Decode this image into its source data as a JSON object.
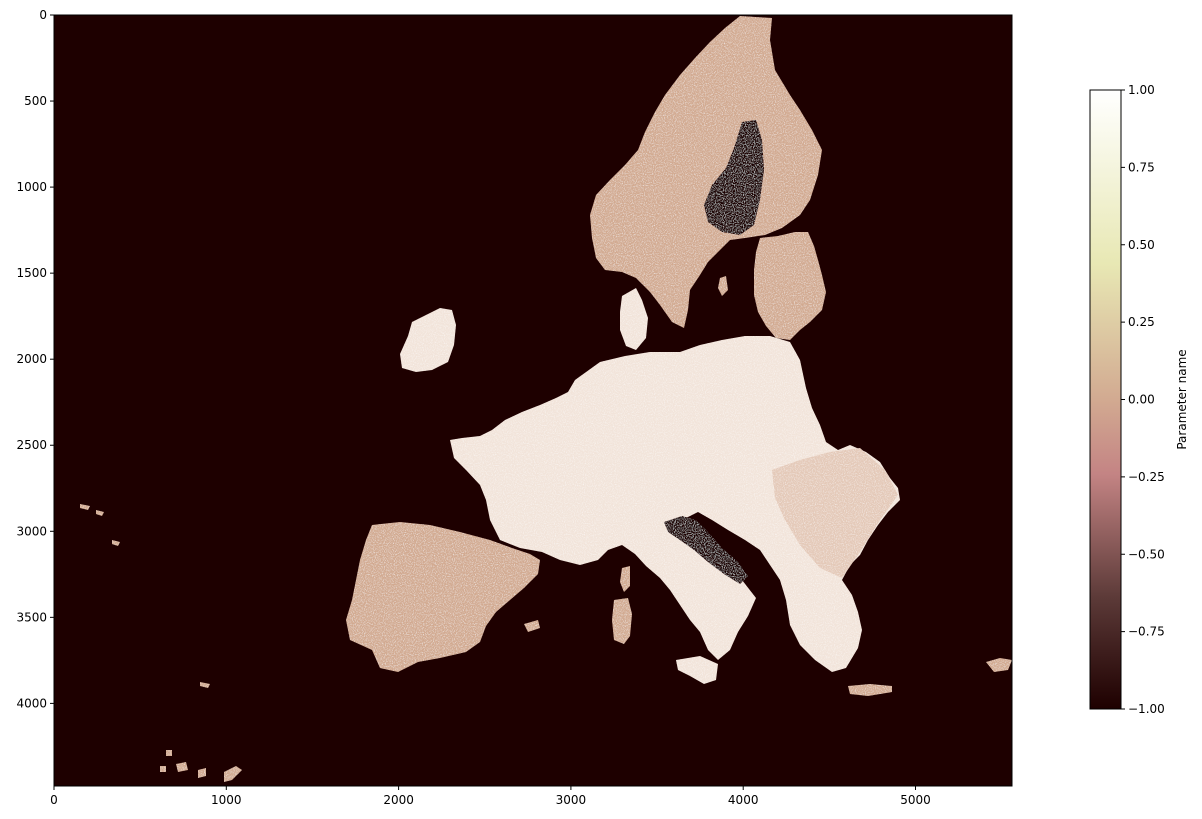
{
  "chart_data": {
    "type": "heatmap",
    "title": "",
    "xlabel": "",
    "ylabel": "",
    "xlim": [
      0,
      5560
    ],
    "ylim": [
      4480,
      0
    ],
    "x_ticks": [
      0,
      1000,
      2000,
      3000,
      4000,
      5000
    ],
    "y_ticks": [
      0,
      500,
      1000,
      1500,
      2000,
      2500,
      3000,
      3500,
      4000
    ],
    "x_tick_labels": [
      "0",
      "1000",
      "2000",
      "3000",
      "4000",
      "5000"
    ],
    "y_tick_labels": [
      "0",
      "500",
      "1000",
      "1500",
      "2000",
      "2500",
      "3000",
      "3500",
      "4000"
    ],
    "background_value": -1.0,
    "colormap": "pink",
    "colormap_stops": [
      "#1e0000",
      "#5c3a38",
      "#c48484",
      "#d6b496",
      "#e8e8b4",
      "#ffffff"
    ],
    "colorbar": {
      "label": "Parameter name",
      "vmin": -1.0,
      "vmax": 1.0,
      "ticks": [
        1.0,
        0.75,
        0.5,
        0.25,
        0.0,
        -0.25,
        -0.5,
        -0.75,
        -1.0
      ],
      "tick_labels": [
        "1.00",
        "0.75",
        "0.50",
        "0.25",
        "0.00",
        "−0.25",
        "−0.50",
        "−0.75",
        "−1.00"
      ]
    },
    "land_colors": {
      "north": "#d2aa91",
      "central": "#f2e4da",
      "iberia": "#d2aa91"
    },
    "grid": false
  }
}
